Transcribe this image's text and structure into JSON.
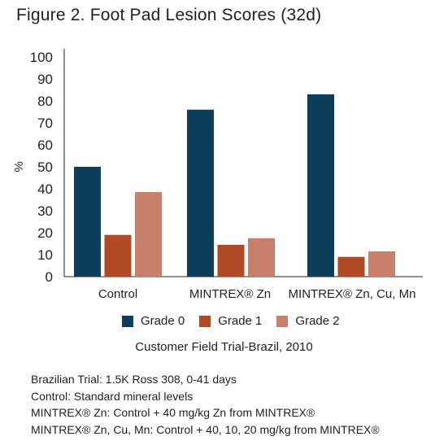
{
  "title": "Figure 2. Foot Pad Lesion Scores (32d)",
  "chart_data": {
    "type": "bar",
    "ylabel": "%",
    "ylim": [
      0,
      100
    ],
    "yticks": [
      0,
      10,
      20,
      30,
      40,
      50,
      60,
      70,
      80,
      90,
      100
    ],
    "grid": false,
    "legend_position": "bottom",
    "categories": [
      "Control",
      "MINTREX® Zn",
      "MINTREX® Zn, Cu, Mn"
    ],
    "series": [
      {
        "name": "Grade 0",
        "color": "#0d3e5c",
        "values": [
          50,
          76,
          83
        ]
      },
      {
        "name": "Grade 1",
        "color": "#b04a24",
        "values": [
          19,
          14.5,
          9
        ]
      },
      {
        "name": "Grade 2",
        "color": "#c8806a",
        "values": [
          38.5,
          17.5,
          11.5
        ]
      }
    ]
  },
  "subcaption": "Customer Field Trial-Brazil, 2010",
  "notes": [
    "Brazilian Trial: 1.5K Ross 308, 0-41 days",
    "Control: Standard mineral levels",
    "MINTREX® Zn: Control + 40 mg/kg Zn from MINTREX®",
    "MINTREX® Zn, Cu, Mn: Control + 40, 10, 20 mg/kg from MINTREX®"
  ]
}
